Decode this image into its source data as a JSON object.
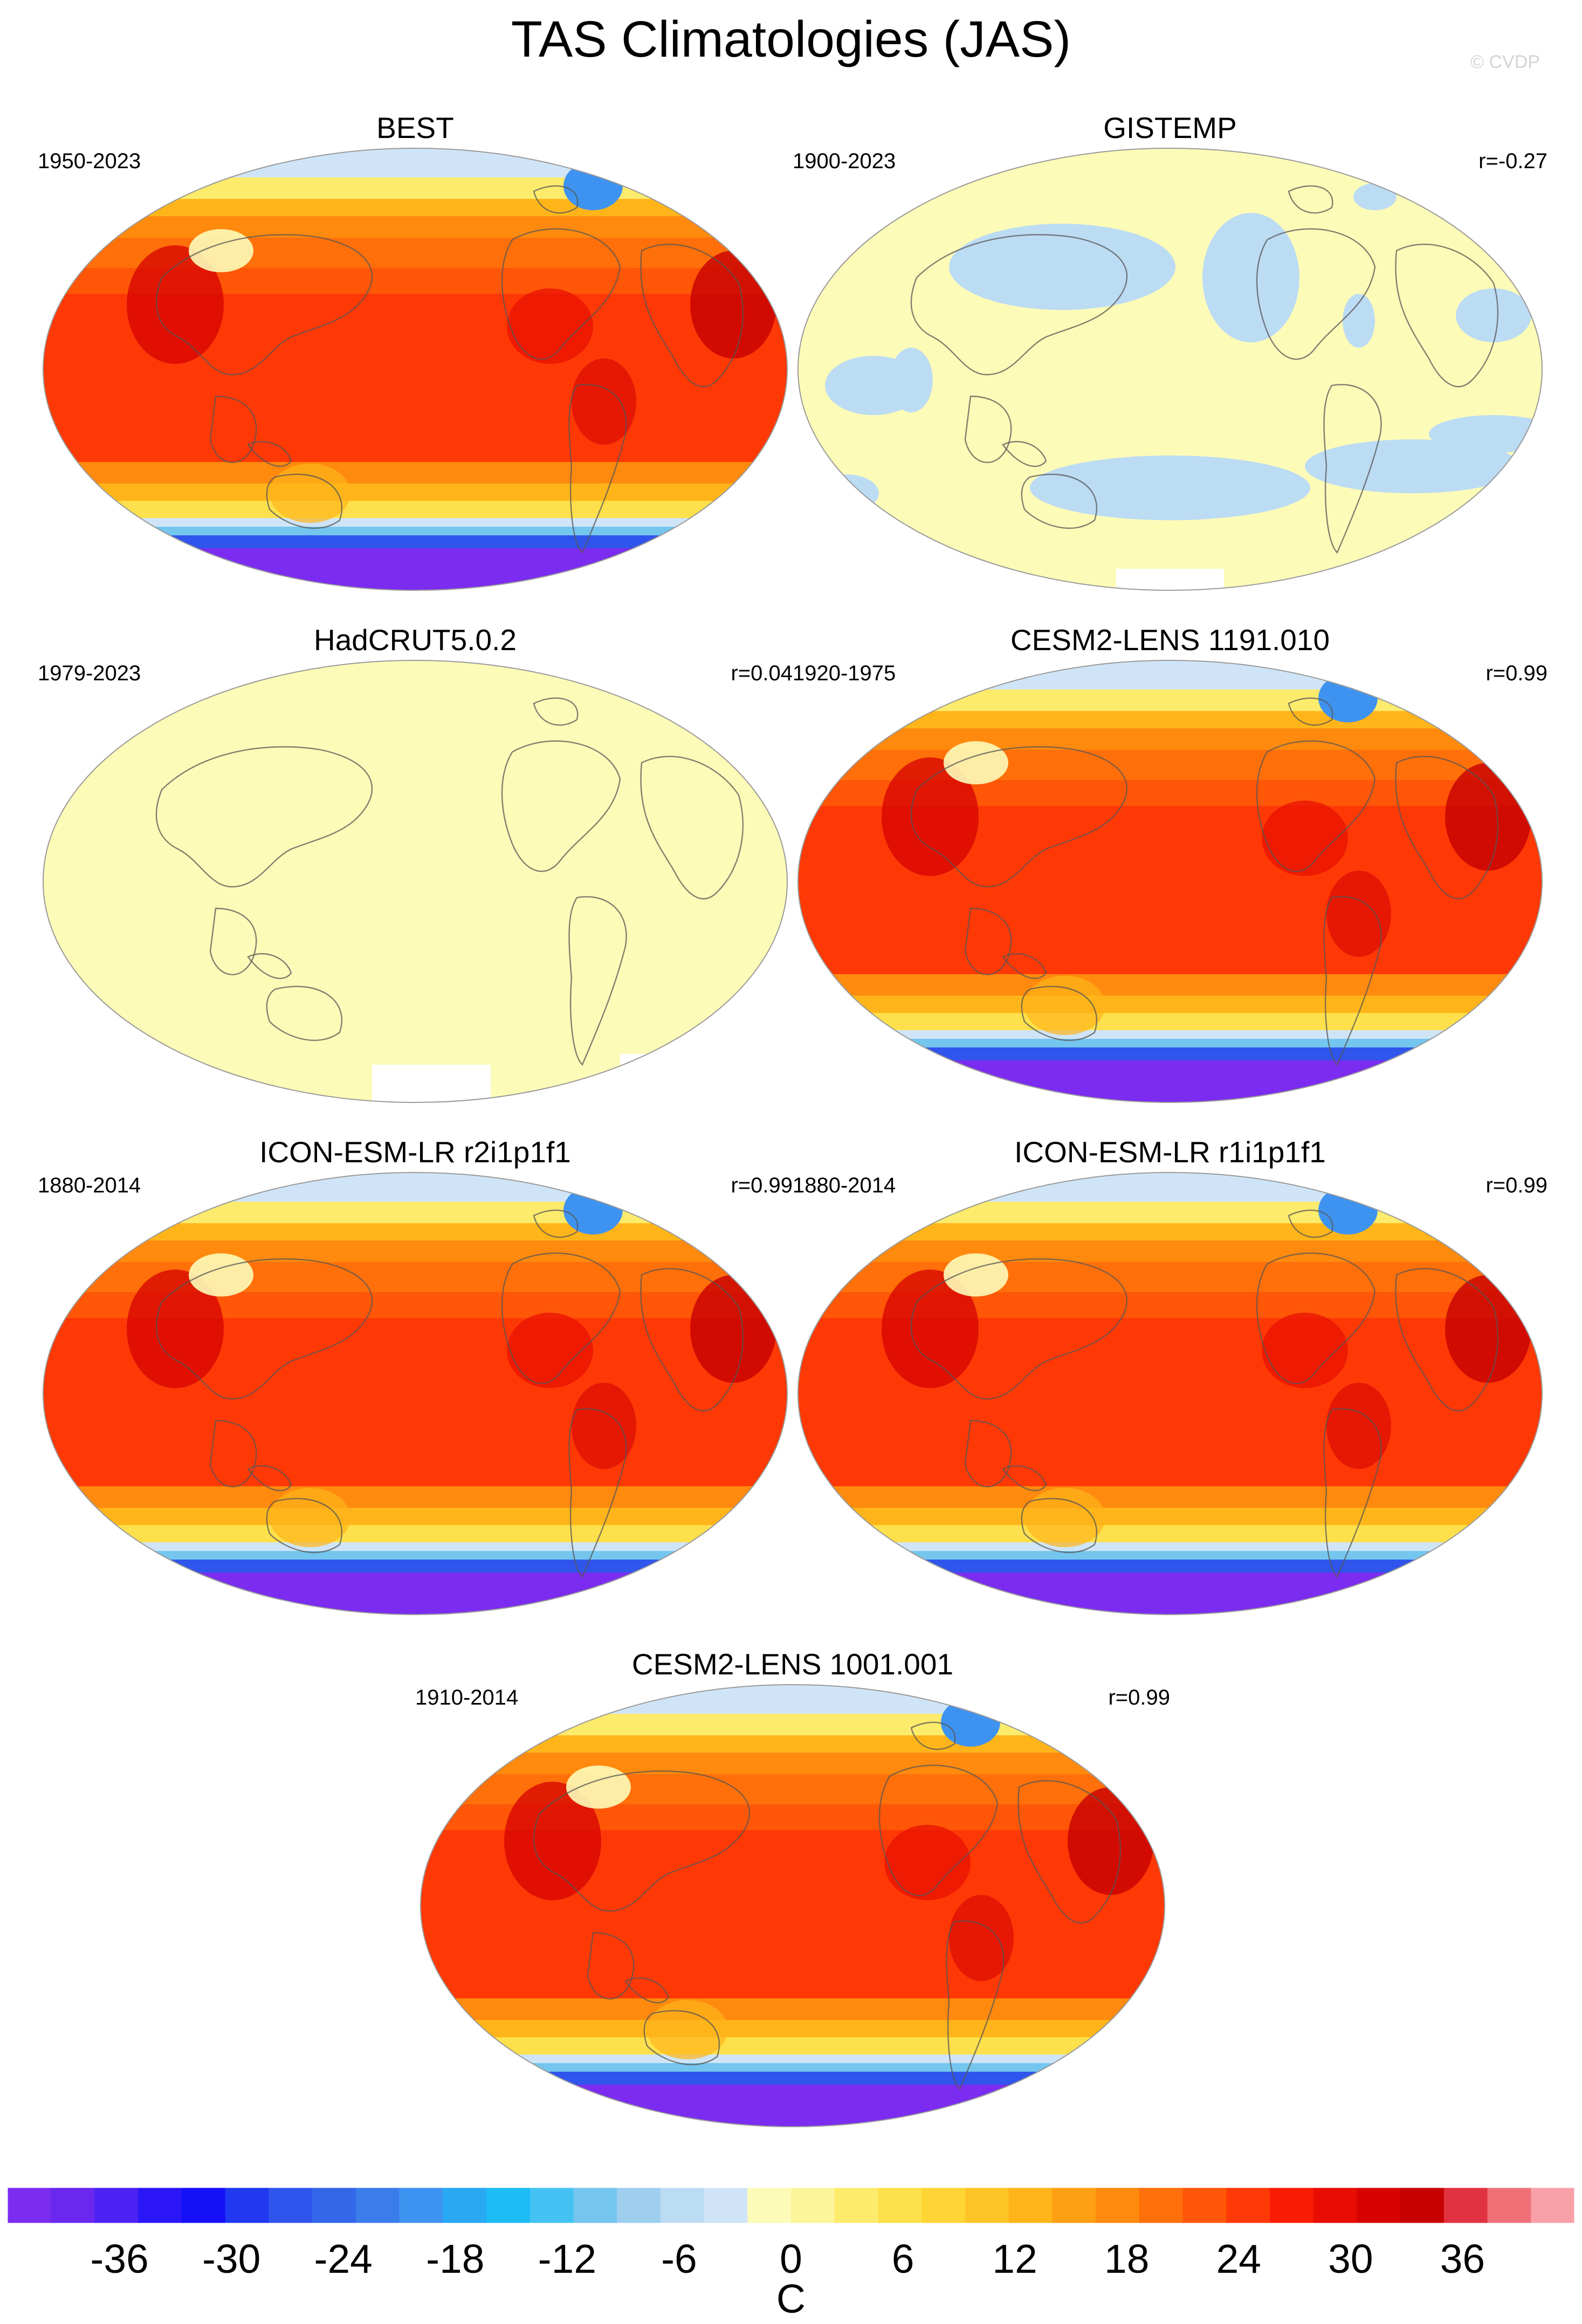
{
  "title": "TAS Climatologies (JAS)",
  "credit": "© CVDP",
  "panels": [
    {
      "title": "BEST",
      "years": "1950-2023",
      "corr": "",
      "field": "full"
    },
    {
      "title": "GISTEMP",
      "years": "1900-2023",
      "corr": "r=-0.27",
      "field": "anomaly"
    },
    {
      "title": "HadCRUT5.0.2",
      "years": "1979-2023",
      "corr": "r=0.04",
      "field": "flat"
    },
    {
      "title": "CESM2-LENS 1191.010",
      "years": "1920-1975",
      "corr": "r=0.99",
      "field": "full"
    },
    {
      "title": "ICON-ESM-LR r2i1p1f1",
      "years": "1880-2014",
      "corr": "r=0.99",
      "field": "full"
    },
    {
      "title": "ICON-ESM-LR r1i1p1f1",
      "years": "1880-2014",
      "corr": "r=0.99",
      "field": "full"
    },
    {
      "title": "CESM2-LENS 1001.001",
      "years": "1910-2014",
      "corr": "r=0.99",
      "field": "full"
    }
  ],
  "colorbar": {
    "unit": "C",
    "tick_labels": [
      "-36",
      "-30",
      "-24",
      "-18",
      "-12",
      "-6",
      "0",
      "6",
      "12",
      "18",
      "24",
      "30",
      "36"
    ],
    "tick_values": [
      -36,
      -30,
      -24,
      -18,
      -12,
      -6,
      0,
      6,
      12,
      18,
      24,
      30,
      36
    ],
    "min": -42,
    "max": 42,
    "colors": [
      "#7b2cf0",
      "#6a27ee",
      "#4b22f2",
      "#2a16f6",
      "#1510f7",
      "#2038f0",
      "#2f55ec",
      "#3366e8",
      "#3b7ceb",
      "#3f93f0",
      "#29a9f4",
      "#1cbcf6",
      "#44c2f4",
      "#74c6ee",
      "#9ecfee",
      "#bcdcf4",
      "#cfe5f7",
      "#fdfbb8",
      "#fdf59a",
      "#fdeb6c",
      "#fde04b",
      "#fed534",
      "#ffc526",
      "#ffb51a",
      "#ff9f12",
      "#ff8a0e",
      "#ff700a",
      "#ff5608",
      "#ff3906",
      "#f81d04",
      "#e80d02",
      "#d60201",
      "#c70001",
      "#e03240",
      "#f07078",
      "#f9a0a8"
    ]
  }
}
